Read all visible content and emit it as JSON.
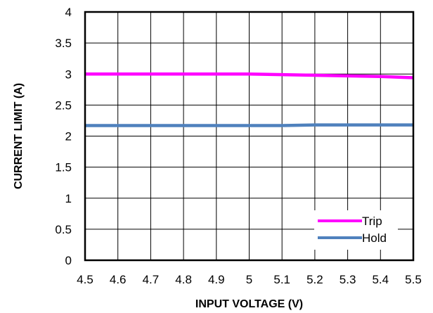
{
  "chart_data": {
    "type": "line",
    "title": "",
    "xlabel": "INPUT VOLTAGE (V)",
    "ylabel": "CURRENT LIMIT (A)",
    "xlim": [
      4.5,
      5.5
    ],
    "ylim": [
      0,
      4
    ],
    "x_ticks": [
      "4.5",
      "4.6",
      "4.7",
      "4.8",
      "4.9",
      "5",
      "5.1",
      "5.2",
      "5.3",
      "5.4",
      "5.5"
    ],
    "y_ticks": [
      "0",
      "0.5",
      "1",
      "1.5",
      "2",
      "2.5",
      "3",
      "3.5",
      "4"
    ],
    "grid": true,
    "legend_position": "bottom-right",
    "series": [
      {
        "name": "Trip",
        "color": "#ff00ff",
        "x": [
          4.5,
          4.6,
          4.7,
          4.8,
          4.9,
          5.0,
          5.1,
          5.2,
          5.3,
          5.4,
          5.5
        ],
        "values": [
          3.0,
          3.0,
          3.0,
          3.0,
          3.0,
          3.0,
          2.99,
          2.98,
          2.97,
          2.96,
          2.94
        ]
      },
      {
        "name": "Hold",
        "color": "#4f81bd",
        "x": [
          4.5,
          4.6,
          4.7,
          4.8,
          4.9,
          5.0,
          5.1,
          5.2,
          5.3,
          5.4,
          5.5
        ],
        "values": [
          2.17,
          2.17,
          2.17,
          2.17,
          2.17,
          2.17,
          2.17,
          2.18,
          2.18,
          2.18,
          2.18
        ]
      }
    ]
  }
}
